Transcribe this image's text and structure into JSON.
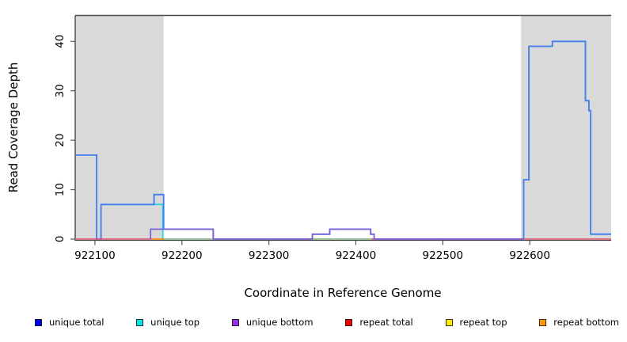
{
  "chart_data": {
    "type": "line",
    "subtype": "step-coverage-plot",
    "title": "",
    "xlabel": "Coordinate in Reference Genome",
    "ylabel": "Read Coverage Depth",
    "xlim": [
      922077.3,
      922693.6
    ],
    "ylim": [
      0,
      45.3
    ],
    "x_ticks": [
      922100,
      922200,
      922300,
      922400,
      922500,
      922600
    ],
    "y_ticks": [
      0,
      10,
      20,
      30,
      40
    ],
    "grid": false,
    "colors": {
      "shaded_region": "#d9d9d9",
      "top_border": "#4d4d4d",
      "axis": "#3a3a3a",
      "tick": "#5a5a5a",
      "text": "#000000"
    },
    "background_regions": [
      {
        "name": "left-shaded-region",
        "x0": 922077.3,
        "x1": 922179,
        "color": "#d9d9d9"
      },
      {
        "name": "right-shaded-region",
        "x0": 922590,
        "x1": 922693.6,
        "color": "#d9d9d9"
      }
    ],
    "series": [
      {
        "name": "unique top",
        "color": "#00dcdc",
        "width": 1.5,
        "points": [
          [
            922107,
            0
          ],
          [
            922107,
            7
          ],
          [
            922178,
            0
          ],
          [
            922418,
            0
          ]
        ]
      },
      {
        "name": "unique total",
        "color": "#3f7dee",
        "width": 1.8,
        "points": [
          [
            922077.3,
            17
          ],
          [
            922102,
            0
          ],
          [
            922107,
            7
          ],
          [
            922168,
            9
          ],
          [
            922179,
            2
          ],
          [
            922236,
            0
          ],
          [
            922350,
            1
          ],
          [
            922370,
            2
          ],
          [
            922417,
            1
          ],
          [
            922421,
            0
          ],
          [
            922593,
            12
          ],
          [
            922599,
            39
          ],
          [
            922626,
            40
          ],
          [
            922664,
            28
          ],
          [
            922668,
            26
          ],
          [
            922670,
            1
          ],
          [
            922693.6,
            1
          ]
        ]
      },
      {
        "name": "repeat total",
        "color": "#e2506e",
        "width": 1.4,
        "points": [
          [
            922077.3,
            0
          ],
          [
            922693.6,
            0
          ]
        ]
      },
      {
        "name": "repeat top",
        "color": "#93cf93",
        "width": 1.4,
        "points": [
          [
            922179,
            0
          ],
          [
            922418,
            0
          ]
        ]
      },
      {
        "name": "repeat bottom",
        "color": "#ff9800",
        "width": 1.5,
        "points": [
          [
            922166,
            0
          ],
          [
            922179,
            0
          ]
        ]
      },
      {
        "name": "unique bottom",
        "color": "#7e5fd8",
        "width": 1.7,
        "points": [
          [
            922164,
            0
          ],
          [
            922164,
            2
          ],
          [
            922236,
            0
          ],
          [
            922350,
            1
          ],
          [
            922370,
            2
          ],
          [
            922417,
            1
          ],
          [
            922421,
            0
          ],
          [
            922593,
            0
          ]
        ]
      }
    ],
    "legend": {
      "position": "bottom",
      "entries": [
        {
          "label": "unique total",
          "color": "#0000ee"
        },
        {
          "label": "unique top",
          "color": "#00e5e5"
        },
        {
          "label": "unique bottom",
          "color": "#9a32dd"
        },
        {
          "label": "repeat total",
          "color": "#ee0000"
        },
        {
          "label": "repeat top",
          "color": "#ffe900"
        },
        {
          "label": "repeat bottom",
          "color": "#ff9800"
        }
      ]
    }
  }
}
